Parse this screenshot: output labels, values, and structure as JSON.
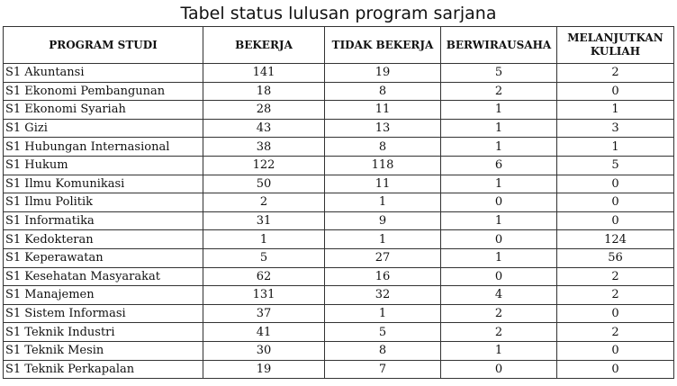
{
  "title": "Tabel status lulusan program sarjana",
  "headers": {
    "program": "PROGRAM STUDI",
    "bekerja": "BEKERJA",
    "tidak_bekerja": "TIDAK BEKERJA",
    "berwirausaha": "BERWIRAUSAHA",
    "melanjutkan_line1": "MELANJUTKAN",
    "melanjutkan_line2": "KULIAH"
  },
  "rows": [
    {
      "program": "S1 Akuntansi",
      "bekerja": "141",
      "tidak_bekerja": "19",
      "berwirausaha": "5",
      "melanjutkan": "2"
    },
    {
      "program": "S1 Ekonomi Pembangunan",
      "bekerja": "18",
      "tidak_bekerja": "8",
      "berwirausaha": "2",
      "melanjutkan": "0"
    },
    {
      "program": "S1 Ekonomi Syariah",
      "bekerja": "28",
      "tidak_bekerja": "11",
      "berwirausaha": "1",
      "melanjutkan": "1"
    },
    {
      "program": "S1 Gizi",
      "bekerja": "43",
      "tidak_bekerja": "13",
      "berwirausaha": "1",
      "melanjutkan": "3"
    },
    {
      "program": "S1 Hubungan Internasional",
      "bekerja": "38",
      "tidak_bekerja": "8",
      "berwirausaha": "1",
      "melanjutkan": "1"
    },
    {
      "program": "S1 Hukum",
      "bekerja": "122",
      "tidak_bekerja": "118",
      "berwirausaha": "6",
      "melanjutkan": "5"
    },
    {
      "program": "S1 Ilmu Komunikasi",
      "bekerja": "50",
      "tidak_bekerja": "11",
      "berwirausaha": "1",
      "melanjutkan": "0"
    },
    {
      "program": "S1 Ilmu Politik",
      "bekerja": "2",
      "tidak_bekerja": "1",
      "berwirausaha": "0",
      "melanjutkan": "0"
    },
    {
      "program": "S1 Informatika",
      "bekerja": "31",
      "tidak_bekerja": "9",
      "berwirausaha": "1",
      "melanjutkan": "0"
    },
    {
      "program": "S1 Kedokteran",
      "bekerja": "1",
      "tidak_bekerja": "1",
      "berwirausaha": "0",
      "melanjutkan": "124"
    },
    {
      "program": "S1 Keperawatan",
      "bekerja": "5",
      "tidak_bekerja": "27",
      "berwirausaha": "1",
      "melanjutkan": "56"
    },
    {
      "program": "S1 Kesehatan Masyarakat",
      "bekerja": "62",
      "tidak_bekerja": "16",
      "berwirausaha": "0",
      "melanjutkan": "2"
    },
    {
      "program": "S1 Manajemen",
      "bekerja": "131",
      "tidak_bekerja": "32",
      "berwirausaha": "4",
      "melanjutkan": "2"
    },
    {
      "program": "S1 Sistem Informasi",
      "bekerja": "37",
      "tidak_bekerja": "1",
      "berwirausaha": "2",
      "melanjutkan": "0"
    },
    {
      "program": "S1 Teknik Industri",
      "bekerja": "41",
      "tidak_bekerja": "5",
      "berwirausaha": "2",
      "melanjutkan": "2"
    },
    {
      "program": "S1 Teknik Mesin",
      "bekerja": "30",
      "tidak_bekerja": "8",
      "berwirausaha": "1",
      "melanjutkan": "0"
    },
    {
      "program": "S1 Teknik Perkapalan",
      "bekerja": "19",
      "tidak_bekerja": "7",
      "berwirausaha": "0",
      "melanjutkan": "0"
    }
  ]
}
